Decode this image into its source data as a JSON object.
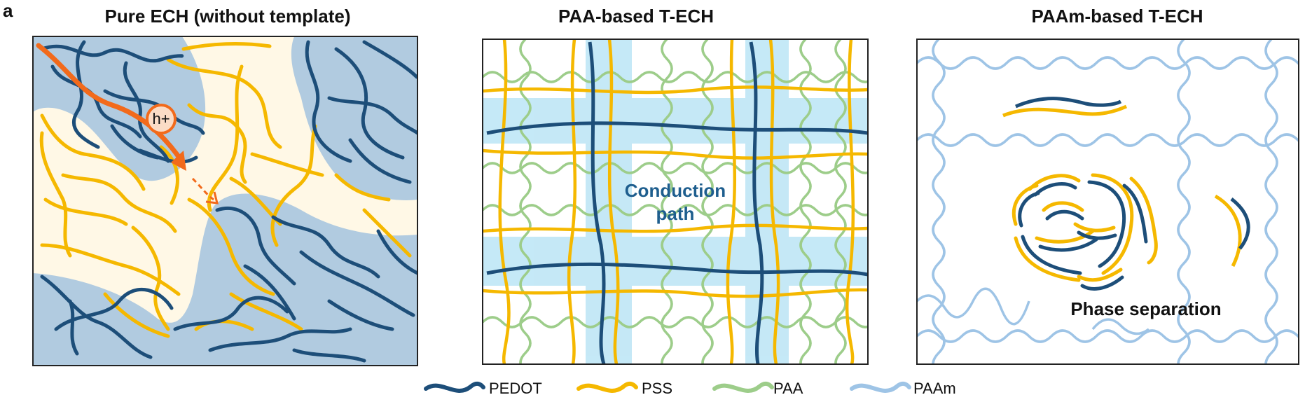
{
  "figure": {
    "panel_letter": "a",
    "panels": [
      {
        "title": "Pure ECH (without template)",
        "carrier_label": "h+"
      },
      {
        "title": "PAA-based T-ECH",
        "annotation": [
          "Conduction",
          "path"
        ]
      },
      {
        "title": "PAAm-based T-ECH",
        "annotation": "Phase separation"
      }
    ],
    "legend": [
      {
        "label": "PEDOT",
        "color": "#1d4e79"
      },
      {
        "label": "PSS",
        "color": "#f5b800"
      },
      {
        "label": "PAA",
        "color": "#9dcd8a"
      },
      {
        "label": "PAAm",
        "color": "#9ec4e6"
      }
    ],
    "colors": {
      "domain_fill": "#b1cbe0",
      "matrix_fill": "#fff8e6",
      "path_fill": "#b7e3f5",
      "arrow": "#f26a1b"
    }
  }
}
